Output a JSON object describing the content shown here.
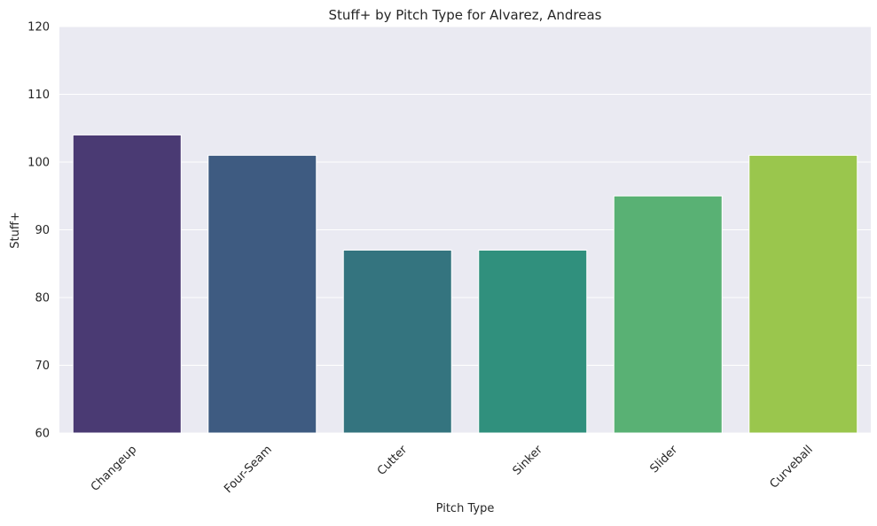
{
  "chart_data": {
    "type": "bar",
    "title": "Stuff+ by Pitch Type for Alvarez, Andreas",
    "xlabel": "Pitch Type",
    "ylabel": "Stuff+",
    "categories": [
      "Changeup",
      "Four-Seam",
      "Cutter",
      "Sinker",
      "Slider",
      "Curveball"
    ],
    "values": [
      104,
      101,
      87,
      87,
      95,
      101
    ],
    "ylim": [
      60,
      120
    ],
    "yticks": [
      60,
      70,
      80,
      90,
      100,
      110,
      120
    ],
    "grid": true,
    "colors": [
      "#4a3a73",
      "#3e5b81",
      "#34747f",
      "#30907d",
      "#59b174",
      "#9ac64d"
    ],
    "background": "#eaeaf2"
  }
}
